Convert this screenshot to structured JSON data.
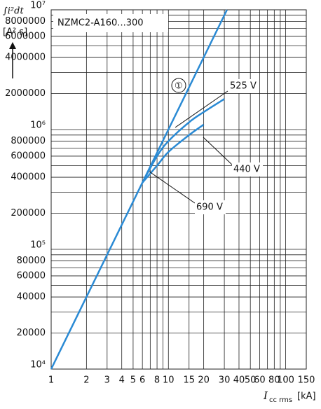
{
  "chart_data": {
    "type": "line",
    "title": "NZMC2-A160...300",
    "y_label": [
      "∫i²dt",
      "[A² s]"
    ],
    "x_label": {
      "main": "I",
      "sub": "cc rms",
      "unit": "[kA]"
    },
    "log_x": true,
    "log_y": true,
    "grid": true,
    "xlim": [
      1,
      150
    ],
    "ylim": [
      10000,
      10000000
    ],
    "xticks": [
      1,
      2,
      3,
      4,
      5,
      6,
      8,
      10,
      15,
      20,
      30,
      40,
      50,
      60,
      80,
      100,
      150
    ],
    "x_minor_grid": [
      7,
      9,
      70,
      90
    ],
    "yticks": [
      {
        "value": 10000,
        "label": "10⁴"
      },
      20000,
      40000,
      60000,
      80000,
      {
        "value": 100000,
        "label": "10⁵"
      },
      200000,
      400000,
      600000,
      800000,
      {
        "value": 1000000,
        "label": "10⁶"
      },
      2000000,
      4000000,
      6000000,
      8000000,
      {
        "value": 10000000,
        "label": "10⁷"
      }
    ],
    "y_minor_grid": [
      30000,
      50000,
      70000,
      90000,
      300000,
      500000,
      700000,
      900000,
      3000000,
      5000000,
      7000000,
      9000000
    ],
    "series": [
      {
        "name": "①",
        "color": "#2a8ad4",
        "x": [
          1,
          31.6
        ],
        "values": [
          10000,
          10000000
        ]
      },
      {
        "name": "525 V",
        "color": "#2a8ad4",
        "x": [
          6,
          8,
          10,
          15,
          20,
          30
        ],
        "values": [
          360000,
          600000,
          800000,
          1150000,
          1400000,
          1800000
        ]
      },
      {
        "name": "440 V",
        "color": "#2a8ad4",
        "x": [
          6,
          8,
          10,
          15,
          20
        ],
        "values": [
          360000,
          500000,
          650000,
          900000,
          1100000
        ]
      }
    ],
    "annotations": [
      "690 V"
    ]
  }
}
